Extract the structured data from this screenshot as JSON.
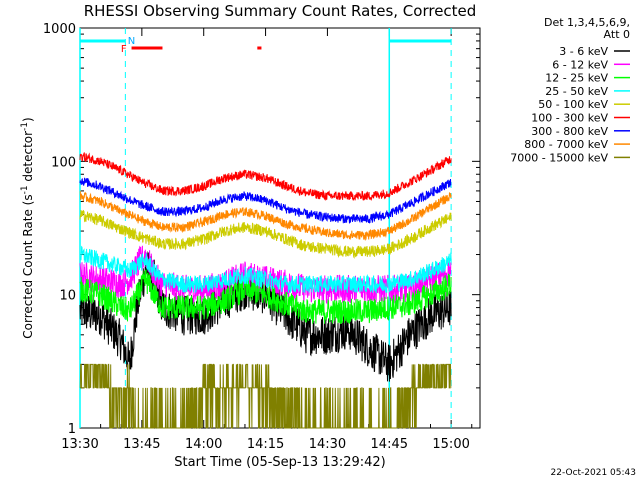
{
  "chart_data": {
    "type": "line",
    "title": "RHESSI Observing Summary Count Rates, Corrected",
    "xlabel": "Start Time (05-Sep-13 13:29:42)",
    "ylabel_main": "Corrected Count Rate (s",
    "ylabel_sup1": "-1",
    "ylabel_mid": " detector",
    "ylabel_sup2": "-1",
    "ylabel_end": ")",
    "yscale": "log",
    "ylim": [
      1,
      1000
    ],
    "xlim": [
      "13:30",
      "15:07"
    ],
    "x_ticks": [
      "13:30",
      "13:45",
      "14:00",
      "14:15",
      "14:30",
      "14:45",
      "15:00"
    ],
    "x_tick_minutes": [
      0,
      15,
      30,
      45,
      60,
      75,
      90
    ],
    "y_ticks": [
      "1",
      "10",
      "100",
      "1000"
    ],
    "y_tick_values": [
      1,
      10,
      100,
      1000
    ],
    "legend_header": [
      "Det 1,3,4,5,6,9,",
      "Att 0"
    ],
    "legend_position": "right",
    "footer_timestamp": "22-Oct-2021 05:43",
    "markers": {
      "F_label": "F",
      "N_label": "N",
      "night_start_minutes": [
        0,
        75
      ],
      "night_end_minutes": [
        11,
        90
      ]
    },
    "series": [
      {
        "name": "3 - 6 keV",
        "color": "#000000",
        "x": [
          0,
          5,
          10,
          12,
          14,
          16,
          18,
          20,
          25,
          30,
          35,
          40,
          45,
          50,
          55,
          60,
          65,
          70,
          75,
          80,
          85,
          90
        ],
        "y": [
          7.5,
          7,
          4.5,
          3,
          8.5,
          16,
          13,
          8,
          7,
          7,
          9,
          11,
          10,
          7,
          5,
          5,
          5.5,
          4,
          3,
          5,
          7,
          8
        ]
      },
      {
        "name": "6 - 12 keV",
        "color": "#ff00ff",
        "x": [
          0,
          5,
          10,
          12,
          14,
          16,
          18,
          20,
          25,
          30,
          35,
          40,
          45,
          50,
          55,
          60,
          65,
          70,
          75,
          80,
          85,
          90
        ],
        "y": [
          14,
          13,
          12,
          13,
          17,
          20,
          14,
          12,
          11,
          11,
          12,
          14,
          13,
          12,
          11,
          11,
          11,
          11,
          11,
          11,
          13,
          15
        ]
      },
      {
        "name": "12 - 25 keV",
        "color": "#00ff00",
        "x": [
          0,
          5,
          10,
          12,
          14,
          16,
          18,
          20,
          25,
          30,
          35,
          40,
          45,
          50,
          55,
          60,
          65,
          70,
          75,
          80,
          85,
          90
        ],
        "y": [
          11,
          10,
          8,
          7.5,
          10,
          13,
          10,
          8,
          8,
          8,
          9,
          11,
          10,
          8.5,
          7.5,
          7.5,
          7.5,
          7.5,
          8,
          8.5,
          10,
          12
        ]
      },
      {
        "name": "25 - 50 keV",
        "color": "#00ffff",
        "x": [
          0,
          5,
          10,
          12,
          14,
          16,
          18,
          20,
          25,
          30,
          35,
          40,
          45,
          50,
          55,
          60,
          65,
          70,
          75,
          80,
          85,
          90
        ],
        "y": [
          20,
          18,
          16,
          15,
          17,
          18,
          15,
          13,
          12,
          12,
          13,
          14,
          13,
          12,
          12,
          12,
          12,
          12,
          12,
          13,
          15,
          18
        ]
      },
      {
        "name": "50 - 100 keV",
        "color": "#cccc00",
        "x": [
          0,
          5,
          10,
          15,
          20,
          25,
          30,
          35,
          40,
          45,
          50,
          55,
          60,
          65,
          70,
          75,
          80,
          85,
          90
        ],
        "y": [
          40,
          36,
          31,
          27,
          24,
          24,
          26,
          30,
          32,
          30,
          26,
          23,
          22,
          21,
          21,
          22,
          26,
          32,
          38
        ]
      },
      {
        "name": "100 - 300 keV",
        "color": "#ff0000",
        "x": [
          0,
          5,
          10,
          15,
          20,
          25,
          30,
          35,
          40,
          45,
          50,
          55,
          60,
          65,
          70,
          75,
          80,
          85,
          90
        ],
        "y": [
          110,
          100,
          85,
          70,
          60,
          60,
          65,
          75,
          80,
          75,
          65,
          58,
          55,
          55,
          55,
          58,
          70,
          85,
          105
        ]
      },
      {
        "name": "300 - 800 keV",
        "color": "#0000ff",
        "x": [
          0,
          5,
          10,
          15,
          20,
          25,
          30,
          35,
          40,
          45,
          50,
          55,
          60,
          65,
          70,
          75,
          80,
          85,
          90
        ],
        "y": [
          72,
          65,
          55,
          47,
          42,
          42,
          45,
          52,
          55,
          51,
          44,
          40,
          38,
          37,
          37,
          40,
          48,
          58,
          70
        ]
      },
      {
        "name": "800 - 7000 keV",
        "color": "#ff8800",
        "x": [
          0,
          5,
          10,
          15,
          20,
          25,
          30,
          35,
          40,
          45,
          50,
          55,
          60,
          65,
          70,
          75,
          80,
          85,
          90
        ],
        "y": [
          55,
          50,
          42,
          36,
          32,
          32,
          35,
          40,
          42,
          39,
          34,
          31,
          29,
          28,
          28,
          30,
          36,
          45,
          55
        ]
      },
      {
        "name": "7000 - 15000 keV",
        "color": "#808000",
        "x": [
          0,
          5,
          10,
          12,
          14,
          20,
          25,
          27,
          30,
          35,
          40,
          45,
          50,
          57,
          60,
          70,
          75,
          80,
          85,
          90
        ],
        "y": [
          2.5,
          2.5,
          1.5,
          2,
          1,
          1,
          1,
          1.2,
          2,
          2,
          2,
          2,
          1.5,
          1,
          1,
          1,
          1,
          2,
          2.5,
          2.5
        ]
      }
    ]
  }
}
